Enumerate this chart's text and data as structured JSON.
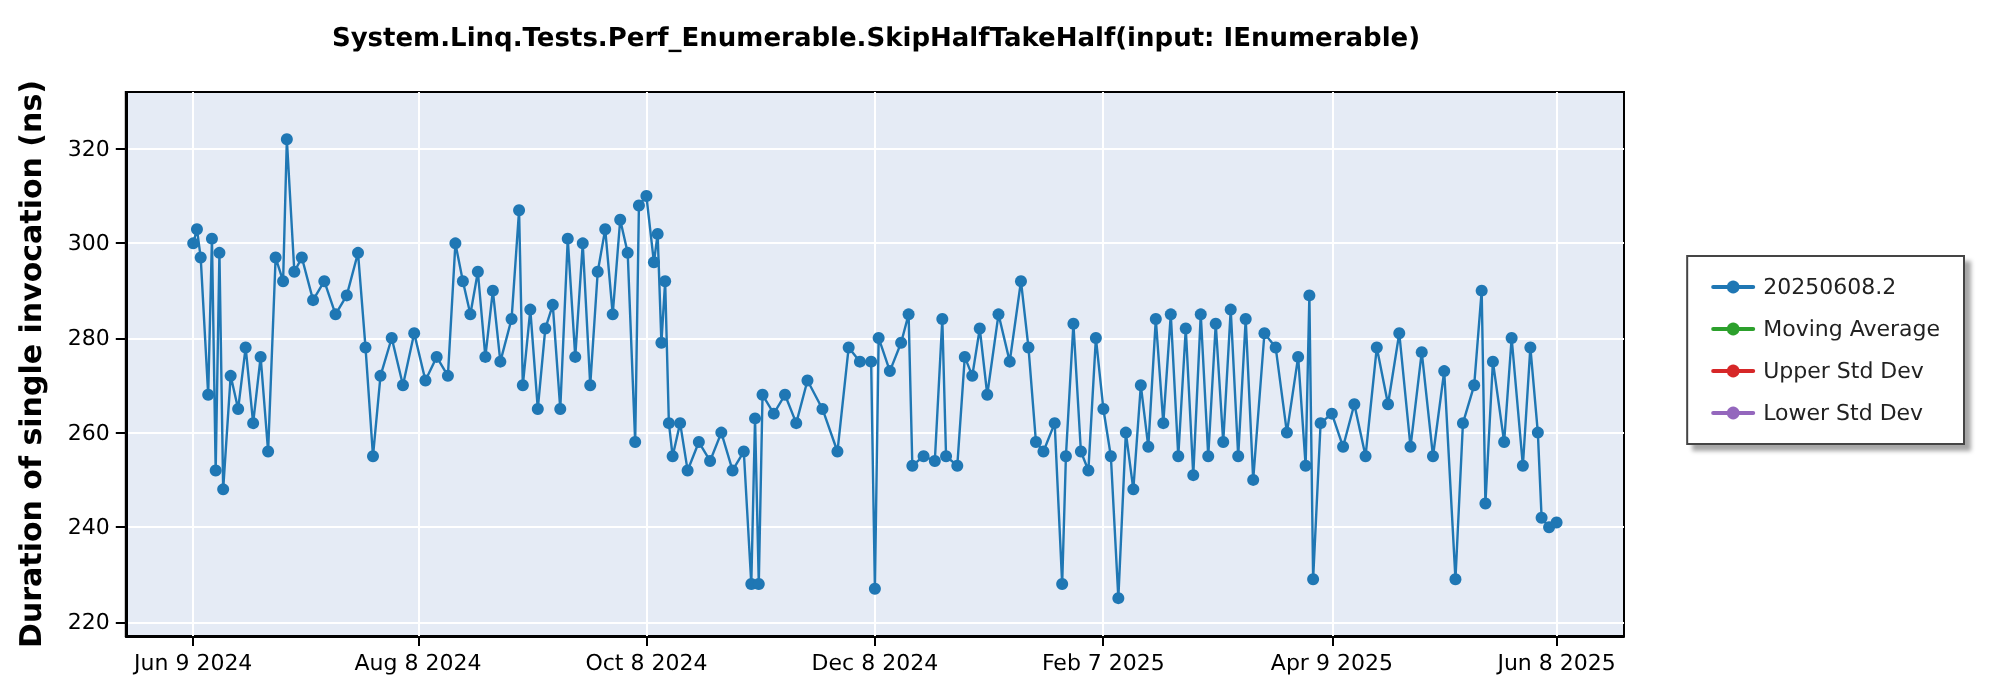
{
  "chart_data": {
    "type": "line",
    "title": "System.Linq.Tests.Perf_Enumerable.SkipHalfTakeHalf(input: IEnumerable)",
    "ylabel": "Duration of single invocation (ns)",
    "x": [
      "2024-06-09",
      "2024-06-10",
      "2024-06-11",
      "2024-06-13",
      "2024-06-14",
      "2024-06-15",
      "2024-06-16",
      "2024-06-17",
      "2024-06-19",
      "2024-06-21",
      "2024-06-23",
      "2024-06-25",
      "2024-06-27",
      "2024-06-29",
      "2024-07-01",
      "2024-07-03",
      "2024-07-04",
      "2024-07-06",
      "2024-07-08",
      "2024-07-11",
      "2024-07-14",
      "2024-07-17",
      "2024-07-20",
      "2024-07-23",
      "2024-07-25",
      "2024-07-27",
      "2024-07-29",
      "2024-08-01",
      "2024-08-04",
      "2024-08-07",
      "2024-08-10",
      "2024-08-13",
      "2024-08-16",
      "2024-08-18",
      "2024-08-20",
      "2024-08-22",
      "2024-08-24",
      "2024-08-26",
      "2024-08-28",
      "2024-08-30",
      "2024-09-02",
      "2024-09-04",
      "2024-09-05",
      "2024-09-07",
      "2024-09-09",
      "2024-09-11",
      "2024-09-13",
      "2024-09-15",
      "2024-09-17",
      "2024-09-19",
      "2024-09-21",
      "2024-09-23",
      "2024-09-25",
      "2024-09-27",
      "2024-09-29",
      "2024-10-01",
      "2024-10-03",
      "2024-10-05",
      "2024-10-06",
      "2024-10-08",
      "2024-10-10",
      "2024-10-11",
      "2024-10-12",
      "2024-10-13",
      "2024-10-14",
      "2024-10-15",
      "2024-10-17",
      "2024-10-19",
      "2024-10-22",
      "2024-10-25",
      "2024-10-28",
      "2024-10-31",
      "2024-11-03",
      "2024-11-05",
      "2024-11-06",
      "2024-11-07",
      "2024-11-08",
      "2024-11-11",
      "2024-11-14",
      "2024-11-17",
      "2024-11-20",
      "2024-11-24",
      "2024-11-28",
      "2024-12-01",
      "2024-12-04",
      "2024-12-07",
      "2024-12-08",
      "2024-12-09",
      "2024-12-12",
      "2024-12-15",
      "2024-12-17",
      "2024-12-18",
      "2024-12-21",
      "2024-12-24",
      "2024-12-26",
      "2024-12-27",
      "2024-12-30",
      "2025-01-01",
      "2025-01-03",
      "2025-01-05",
      "2025-01-07",
      "2025-01-10",
      "2025-01-13",
      "2025-01-16",
      "2025-01-18",
      "2025-01-20",
      "2025-01-22",
      "2025-01-25",
      "2025-01-27",
      "2025-01-28",
      "2025-01-30",
      "2025-02-01",
      "2025-02-03",
      "2025-02-05",
      "2025-02-07",
      "2025-02-09",
      "2025-02-11",
      "2025-02-13",
      "2025-02-15",
      "2025-02-17",
      "2025-02-19",
      "2025-02-21",
      "2025-02-23",
      "2025-02-25",
      "2025-02-27",
      "2025-03-01",
      "2025-03-03",
      "2025-03-05",
      "2025-03-07",
      "2025-03-09",
      "2025-03-11",
      "2025-03-13",
      "2025-03-15",
      "2025-03-17",
      "2025-03-19",
      "2025-03-22",
      "2025-03-25",
      "2025-03-28",
      "2025-03-31",
      "2025-04-02",
      "2025-04-03",
      "2025-04-04",
      "2025-04-06",
      "2025-04-09",
      "2025-04-12",
      "2025-04-15",
      "2025-04-18",
      "2025-04-21",
      "2025-04-24",
      "2025-04-27",
      "2025-04-30",
      "2025-05-03",
      "2025-05-06",
      "2025-05-09",
      "2025-05-12",
      "2025-05-14",
      "2025-05-17",
      "2025-05-19",
      "2025-05-20",
      "2025-05-22",
      "2025-05-25",
      "2025-05-27",
      "2025-05-30",
      "2025-06-01",
      "2025-06-03",
      "2025-06-04",
      "2025-06-06",
      "2025-06-08"
    ],
    "series": [
      {
        "name": "20250608.2",
        "color": "#1f77b4",
        "values": [
          300,
          303,
          297,
          268,
          301,
          252,
          298,
          248,
          272,
          265,
          278,
          262,
          276,
          256,
          297,
          292,
          322,
          294,
          297,
          288,
          292,
          285,
          289,
          298,
          278,
          255,
          272,
          280,
          270,
          281,
          271,
          276,
          272,
          300,
          292,
          285,
          294,
          276,
          290,
          275,
          284,
          307,
          270,
          286,
          265,
          282,
          287,
          265,
          301,
          276,
          300,
          270,
          294,
          303,
          285,
          305,
          298,
          258,
          308,
          310,
          296,
          302,
          279,
          292,
          262,
          255,
          262,
          252,
          258,
          254,
          260,
          252,
          256,
          228,
          263,
          228,
          268,
          264,
          268,
          262,
          271,
          265,
          256,
          278,
          275,
          275,
          227,
          280,
          273,
          279,
          285,
          253,
          255,
          254,
          284,
          255,
          253,
          276,
          272,
          282,
          268,
          285,
          275,
          292,
          278,
          258,
          256,
          262,
          228,
          255,
          283,
          256,
          252,
          280,
          265,
          255,
          225,
          260,
          248,
          270,
          257,
          284,
          262,
          285,
          255,
          282,
          251,
          285,
          255,
          283,
          258,
          286,
          255,
          284,
          250,
          281,
          278,
          260,
          276,
          253,
          289,
          229,
          262,
          264,
          257,
          266,
          255,
          278,
          266,
          281,
          257,
          277,
          255,
          273,
          229,
          262,
          270,
          290,
          245,
          275,
          258,
          280,
          253,
          278,
          260,
          242,
          240,
          241
        ]
      },
      {
        "name": "Moving Average",
        "color": "#2ca02c",
        "values": [
          null,
          null,
          null,
          null,
          null,
          null,
          null,
          null,
          null,
          null,
          null,
          null,
          null,
          null,
          null,
          null,
          null,
          null,
          null,
          null,
          null,
          null,
          null,
          null,
          null,
          null,
          null,
          null,
          null,
          null,
          null,
          null,
          null,
          null,
          null,
          null,
          null,
          null,
          null,
          null,
          null,
          null,
          null,
          null,
          null,
          null,
          null,
          null,
          null,
          null,
          null,
          null,
          null,
          null,
          null,
          null,
          null,
          null,
          null,
          null,
          null,
          null,
          null,
          null,
          null,
          null,
          null,
          null,
          null,
          null,
          null,
          null,
          null,
          null,
          null,
          null,
          null,
          null,
          null,
          null,
          null,
          null,
          null,
          null,
          null,
          null,
          null,
          null,
          null,
          null,
          null,
          null,
          null,
          null,
          null,
          null,
          null,
          null,
          null,
          null,
          null,
          null,
          null,
          null,
          null,
          null,
          null,
          null,
          null,
          null,
          null,
          null,
          null,
          null,
          null,
          null,
          null,
          null,
          null,
          null,
          null,
          null,
          null,
          null,
          null,
          null,
          null,
          null,
          null,
          null,
          null,
          null,
          null,
          null,
          null,
          null,
          null,
          null,
          null,
          null,
          null,
          null,
          null,
          null,
          null,
          null,
          null,
          null,
          null,
          null,
          null,
          null,
          null,
          null,
          null,
          null,
          null,
          null,
          null,
          null,
          null,
          null,
          null,
          null,
          null,
          null,
          null,
          null
        ]
      },
      {
        "name": "Upper Std Dev",
        "color": "#d62728",
        "values": [
          null,
          null,
          null,
          null,
          null,
          null,
          null,
          null,
          null,
          null,
          null,
          null,
          null,
          null,
          null,
          null,
          null,
          null,
          null,
          null,
          null,
          null,
          null,
          null,
          null,
          null,
          null,
          null,
          null,
          null,
          null,
          null,
          null,
          null,
          null,
          null,
          null,
          null,
          null,
          null,
          null,
          null,
          null,
          null,
          null,
          null,
          null,
          null,
          null,
          null,
          null,
          null,
          null,
          null,
          null,
          null,
          null,
          null,
          null,
          null,
          null,
          null,
          null,
          null,
          null,
          null,
          null,
          null,
          null,
          null,
          null,
          null,
          null,
          null,
          null,
          null,
          null,
          null,
          null,
          null,
          null,
          null,
          null,
          null,
          null,
          null,
          null,
          null,
          null,
          null,
          null,
          null,
          null,
          null,
          null,
          null,
          null,
          null,
          null,
          null,
          null,
          null,
          null,
          null,
          null,
          null,
          null,
          null,
          null,
          null,
          null,
          null,
          null,
          null,
          null,
          null,
          null,
          null,
          null,
          null,
          null,
          null,
          null,
          null,
          null,
          null,
          null,
          null,
          null,
          null,
          null,
          null,
          null,
          null,
          null,
          null,
          null,
          null,
          null,
          null,
          null,
          null,
          null,
          null,
          null,
          null,
          null,
          null,
          null,
          null,
          null,
          null,
          null,
          null,
          null,
          null,
          null,
          null,
          null,
          null,
          null,
          null,
          null,
          null,
          null,
          null,
          null,
          null
        ]
      },
      {
        "name": "Lower Std Dev",
        "color": "#9467bd",
        "values": [
          null,
          null,
          null,
          null,
          null,
          null,
          null,
          null,
          null,
          null,
          null,
          null,
          null,
          null,
          null,
          null,
          null,
          null,
          null,
          null,
          null,
          null,
          null,
          null,
          null,
          null,
          null,
          null,
          null,
          null,
          null,
          null,
          null,
          null,
          null,
          null,
          null,
          null,
          null,
          null,
          null,
          null,
          null,
          null,
          null,
          null,
          null,
          null,
          null,
          null,
          null,
          null,
          null,
          null,
          null,
          null,
          null,
          null,
          null,
          null,
          null,
          null,
          null,
          null,
          null,
          null,
          null,
          null,
          null,
          null,
          null,
          null,
          null,
          null,
          null,
          null,
          null,
          null,
          null,
          null,
          null,
          null,
          null,
          null,
          null,
          null,
          null,
          null,
          null,
          null,
          null,
          null,
          null,
          null,
          null,
          null,
          null,
          null,
          null,
          null,
          null,
          null,
          null,
          null,
          null,
          null,
          null,
          null,
          null,
          null,
          null,
          null,
          null,
          null,
          null,
          null,
          null,
          null,
          null,
          null,
          null,
          null,
          null,
          null,
          null,
          null,
          null,
          null,
          null,
          null,
          null,
          null,
          null,
          null,
          null,
          null,
          null,
          null,
          null,
          null,
          null,
          null,
          null,
          null,
          null,
          null,
          null,
          null,
          null,
          null,
          null,
          null,
          null,
          null,
          null,
          null,
          null,
          null,
          null,
          null,
          null,
          null,
          null,
          null,
          null,
          null,
          null,
          null
        ]
      }
    ],
    "xlim": [
      "2024-05-22",
      "2025-06-26"
    ],
    "xticks": [
      {
        "value": "2024-06-09",
        "label": "Jun 9 2024"
      },
      {
        "value": "2024-08-08",
        "label": "Aug 8 2024"
      },
      {
        "value": "2024-10-08",
        "label": "Oct 8 2024"
      },
      {
        "value": "2024-12-08",
        "label": "Dec 8 2024"
      },
      {
        "value": "2025-02-07",
        "label": "Feb 7 2025"
      },
      {
        "value": "2025-04-09",
        "label": "Apr 9 2025"
      },
      {
        "value": "2025-06-08",
        "label": "Jun 8 2025"
      }
    ],
    "ylim": [
      217,
      332
    ],
    "yticks": [
      220,
      240,
      260,
      280,
      300,
      320
    ],
    "grid": true,
    "legend": "right",
    "marker": "circle",
    "line_style": "solid"
  }
}
